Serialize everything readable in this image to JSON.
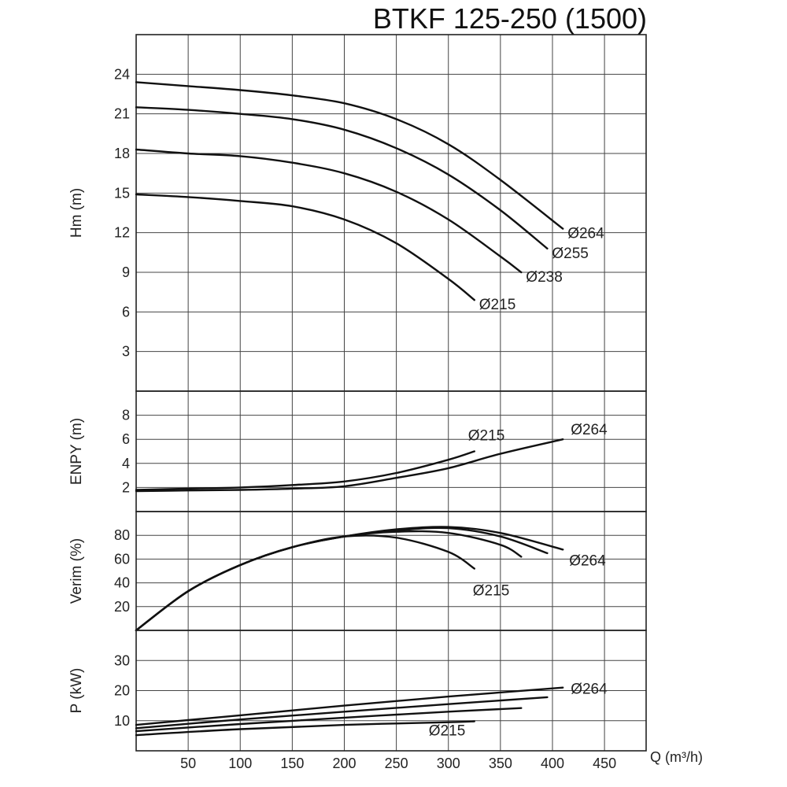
{
  "chart_data": {
    "title": "BTKF 125-250 (1500)",
    "xlabel": "Q (m³/h)",
    "xlim": [
      0,
      490
    ],
    "x_ticks": [
      50,
      100,
      150,
      200,
      250,
      300,
      350,
      400,
      450
    ],
    "panels": [
      {
        "id": "head",
        "type": "line",
        "ylabel": "Hm (m)",
        "ylim": [
          0,
          27
        ],
        "y_ticks": [
          3,
          6,
          9,
          12,
          15,
          18,
          21,
          24
        ],
        "grid": true,
        "series": [
          {
            "label": "Ø264",
            "x": [
              0,
              50,
              100,
              150,
              200,
              250,
              300,
              350,
              410
            ],
            "y": [
              23.4,
              23.1,
              22.8,
              22.4,
              21.8,
              20.6,
              18.7,
              16.0,
              12.3
            ]
          },
          {
            "label": "Ø255",
            "x": [
              0,
              50,
              100,
              150,
              200,
              250,
              300,
              350,
              395
            ],
            "y": [
              21.5,
              21.3,
              21.0,
              20.6,
              19.8,
              18.4,
              16.4,
              13.7,
              10.8
            ]
          },
          {
            "label": "Ø238",
            "x": [
              0,
              50,
              100,
              150,
              200,
              250,
              300,
              350,
              370
            ],
            "y": [
              18.3,
              18.0,
              17.8,
              17.3,
              16.5,
              15.1,
              13.0,
              10.2,
              9.0
            ]
          },
          {
            "label": "Ø215",
            "x": [
              0,
              50,
              100,
              150,
              200,
              250,
              300,
              325
            ],
            "y": [
              14.9,
              14.7,
              14.4,
              14.0,
              13.0,
              11.2,
              8.5,
              6.9
            ]
          }
        ]
      },
      {
        "id": "npsh",
        "type": "line",
        "ylabel": "ENPY (m)",
        "ylim": [
          0,
          10
        ],
        "y_ticks": [
          2,
          4,
          6,
          8
        ],
        "grid": true,
        "series": [
          {
            "label": "Ø215",
            "x": [
              0,
              50,
              100,
              150,
              200,
              250,
              300,
              325
            ],
            "y": [
              1.8,
              1.9,
              2.0,
              2.2,
              2.5,
              3.2,
              4.3,
              5.0
            ]
          },
          {
            "label": "Ø264",
            "x": [
              0,
              50,
              100,
              150,
              200,
              250,
              300,
              350,
              410
            ],
            "y": [
              1.7,
              1.75,
              1.8,
              1.9,
              2.1,
              2.8,
              3.6,
              4.8,
              6.0
            ]
          }
        ]
      },
      {
        "id": "efficiency",
        "type": "line",
        "ylabel": "Verim (%)",
        "ylim": [
          0,
          100
        ],
        "y_ticks": [
          20,
          40,
          60,
          80
        ],
        "grid": true,
        "series": [
          {
            "label": "Ø264",
            "x": [
              0,
              50,
              100,
              150,
              200,
              250,
              300,
              350,
              410
            ],
            "y": [
              0,
              33,
              55,
              70,
              79,
              85,
              87,
              82,
              68
            ]
          },
          {
            "label": "",
            "x": [
              0,
              50,
              100,
              150,
              200,
              250,
              300,
              350,
              395
            ],
            "y": [
              0,
              33,
              55,
              70,
              79,
              84,
              86,
              79,
              65
            ]
          },
          {
            "label": "",
            "x": [
              0,
              50,
              100,
              150,
              200,
              250,
              300,
              350,
              370
            ],
            "y": [
              0,
              33,
              55,
              70,
              79,
              83,
              82,
              72,
              62
            ]
          },
          {
            "label": "Ø215",
            "x": [
              0,
              50,
              100,
              150,
              200,
              250,
              300,
              325
            ],
            "y": [
              0,
              33,
              55,
              70,
              79,
              78,
              66,
              52
            ]
          }
        ]
      },
      {
        "id": "power",
        "type": "line",
        "ylabel": "P (kW)",
        "ylim": [
          0,
          40
        ],
        "y_ticks": [
          10,
          20,
          30
        ],
        "grid": true,
        "series": [
          {
            "label": "Ø264",
            "x": [
              0,
              100,
              200,
              300,
              410
            ],
            "y": [
              8.6,
              11.8,
              15.0,
              18.0,
              21.0
            ]
          },
          {
            "label": "",
            "x": [
              0,
              100,
              200,
              300,
              395
            ],
            "y": [
              7.5,
              10.4,
              13.0,
              15.5,
              17.8
            ]
          },
          {
            "label": "",
            "x": [
              0,
              100,
              200,
              300,
              370
            ],
            "y": [
              6.5,
              8.9,
              11.0,
              13.0,
              14.2
            ]
          },
          {
            "label": "Ø215",
            "x": [
              0,
              100,
              200,
              300,
              325
            ],
            "y": [
              5.2,
              7.2,
              8.6,
              9.5,
              9.8
            ]
          }
        ]
      }
    ]
  }
}
